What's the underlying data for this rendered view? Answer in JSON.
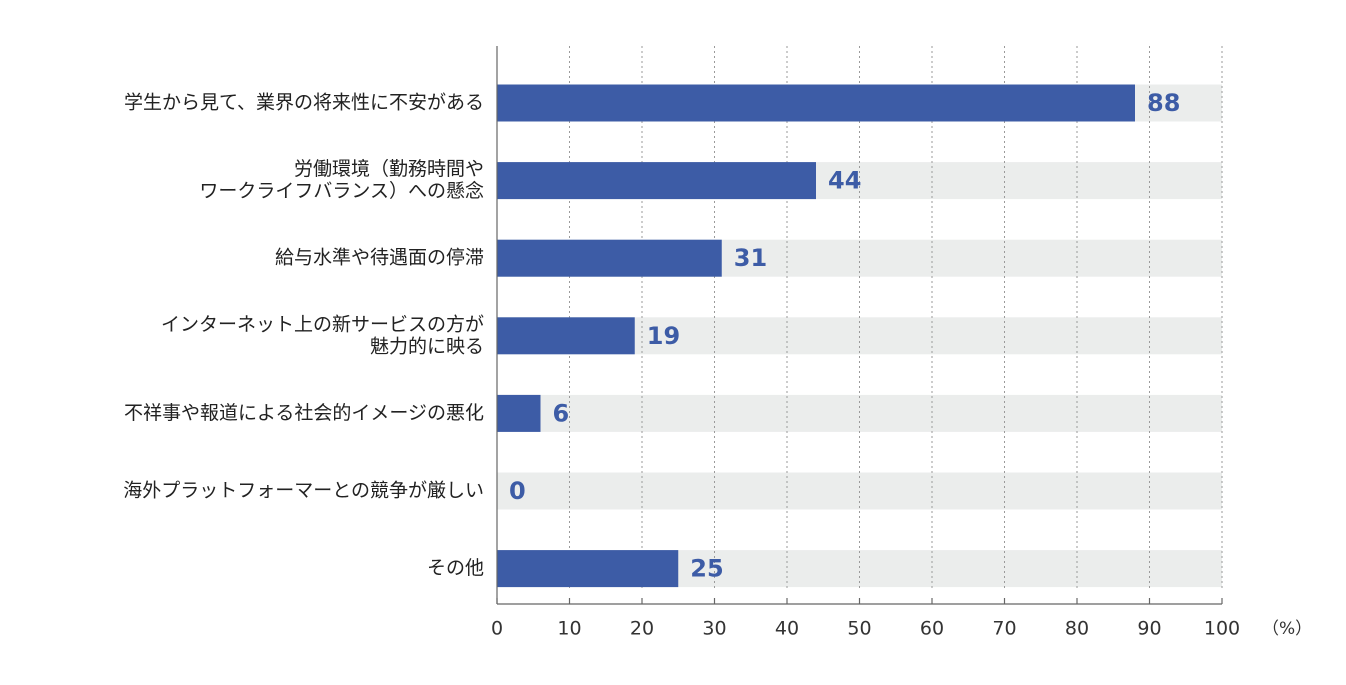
{
  "chart_data": {
    "type": "bar",
    "orientation": "horizontal",
    "categories": [
      [
        "学生から見て、業界の将来性に不安がある"
      ],
      [
        "労働環境（勤務時間や",
        "ワークライフバランス）への懸念"
      ],
      [
        "給与水準や待遇面の停滞"
      ],
      [
        "インターネット上の新サービスの方が",
        "魅力的に映る"
      ],
      [
        "不祥事や報道による社会的イメージの悪化"
      ],
      [
        "海外プラットフォーマーとの競争が厳しい"
      ],
      [
        "その他"
      ]
    ],
    "values": [
      88,
      44,
      31,
      19,
      6,
      0,
      25
    ],
    "value_labels": [
      "88",
      "44",
      "31",
      "19",
      "6",
      "0",
      "25"
    ],
    "xlim": [
      0,
      100
    ],
    "xticks": [
      0,
      10,
      20,
      30,
      40,
      50,
      60,
      70,
      80,
      90,
      100
    ],
    "tick_labels": [
      "0",
      "10",
      "20",
      "30",
      "40",
      "50",
      "60",
      "70",
      "80",
      "90",
      "100"
    ],
    "unit": "（%）",
    "grid": "vertical-dotted",
    "colors": {
      "bar": "#3d5ca6",
      "track": "#ebedec",
      "value_text": "#3d5ca6",
      "grid": "#9a9a9a",
      "axis": "#666666"
    }
  }
}
